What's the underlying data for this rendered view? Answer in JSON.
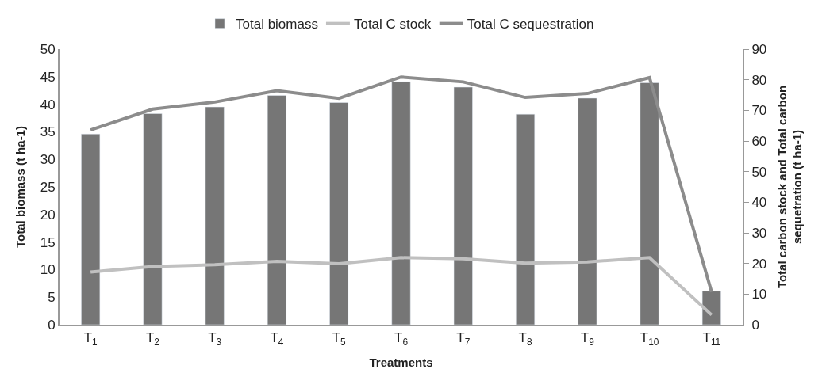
{
  "chart_data": {
    "type": "bar",
    "xlabel": "Treatments",
    "ylabel": "Total biomass (t ha-1)",
    "y2label": "Total carbon stock and Total carbon sequetration (t ha-1)",
    "categories": [
      "T$_{1}$",
      "T$_{2}$",
      "T$_{3}$",
      "T$_{4}$",
      "T$_{5}$",
      "T$_{6}$",
      "T$_{7}$",
      "T$_{8}$",
      "T$_{9}$",
      "T$_{10}$",
      "T$_{11}$"
    ],
    "series": [
      {
        "name": "Total biomass",
        "color": "#767676",
        "values": [
          34.6,
          38.3,
          39.5,
          41.6,
          40.3,
          44.1,
          43.1,
          38.2,
          41.1,
          43.9,
          6.1
        ]
      },
      {
        "name": "Total C stock",
        "type": "line",
        "axis": "y2",
        "color": "#c0c0c0",
        "values": [
          17.2,
          19.0,
          19.6,
          20.7,
          19.9,
          21.9,
          21.5,
          20.1,
          20.5,
          21.9,
          3.2
        ]
      },
      {
        "name": "Total C sequestration",
        "type": "line",
        "axis": "y2",
        "color": "#8c8c8c",
        "values": [
          63.6,
          70.4,
          72.7,
          76.4,
          73.9,
          80.9,
          79.3,
          74.2,
          75.5,
          80.7,
          10.7
        ]
      }
    ],
    "ylim": [
      0,
      50
    ],
    "yticks": [
      0,
      5,
      10,
      15,
      20,
      25,
      30,
      35,
      40,
      45,
      50
    ],
    "y2lim": [
      0,
      90
    ],
    "y2ticks": [
      0,
      10,
      20,
      30,
      40,
      50,
      60,
      70,
      80,
      90
    ],
    "legend": "top",
    "marker": "none",
    "line_style": "solid"
  }
}
